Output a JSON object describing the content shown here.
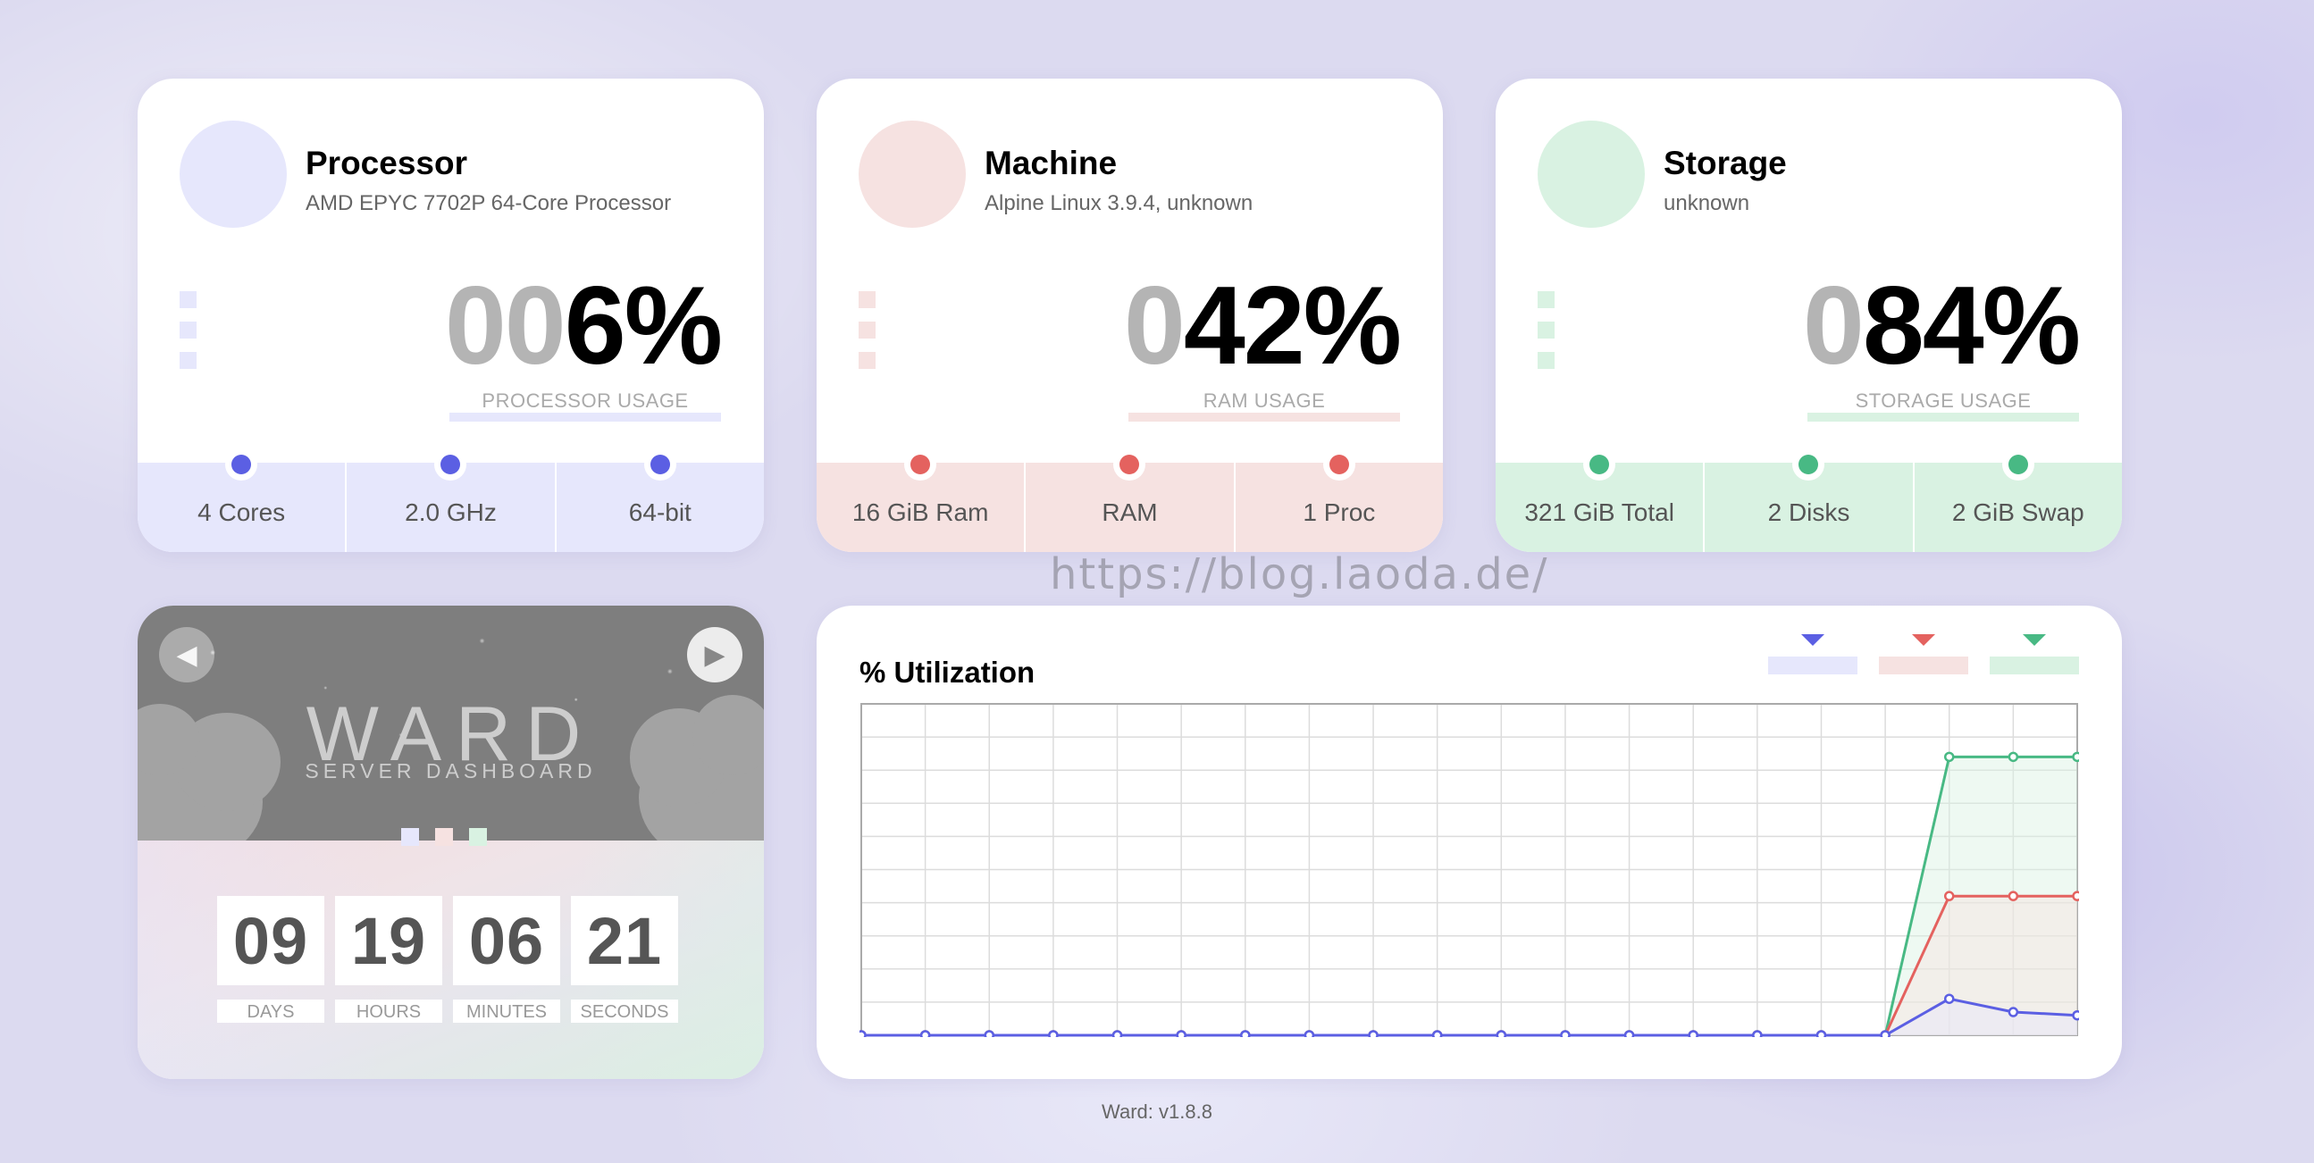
{
  "cards": {
    "processor": {
      "title": "Processor",
      "subtitle": "AMD EPYC 7702P 64-Core Processor",
      "usage_pad": "00",
      "usage_value": "6%",
      "usage_label": "PROCESSOR USAGE",
      "stats": [
        "4 Cores",
        "2.0 GHz",
        "64-bit"
      ],
      "color": "#5b5fe3"
    },
    "machine": {
      "title": "Machine",
      "subtitle": "Alpine Linux 3.9.4, unknown",
      "usage_pad": "0",
      "usage_value": "42%",
      "usage_label": "RAM USAGE",
      "stats": [
        "16 GiB Ram",
        "RAM",
        "1 Proc"
      ],
      "color": "#e4625f"
    },
    "storage": {
      "title": "Storage",
      "subtitle": "unknown",
      "usage_pad": "0",
      "usage_value": "84%",
      "usage_label": "STORAGE USAGE",
      "stats": [
        "321 GiB Total",
        "2 Disks",
        "2 GiB Swap"
      ],
      "color": "#48b984"
    }
  },
  "uptime": {
    "logo": "WARD",
    "subtitle": "SERVER DASHBOARD",
    "prev_icon": "triangle-left-icon",
    "next_icon": "triangle-right-icon",
    "counters": [
      {
        "value": "09",
        "label": "DAYS"
      },
      {
        "value": "19",
        "label": "HOURS"
      },
      {
        "value": "06",
        "label": "MINUTES"
      },
      {
        "value": "21",
        "label": "SECONDS"
      }
    ]
  },
  "chart_data": {
    "type": "line",
    "title": "% Utilization",
    "xlabel": "",
    "ylabel": "",
    "ylim": [
      0,
      100
    ],
    "grid": true,
    "legend": "top-right",
    "x": [
      1,
      2,
      3,
      4,
      5,
      6,
      7,
      8,
      9,
      10,
      11,
      12,
      13,
      14,
      15,
      16,
      17,
      18,
      19,
      20
    ],
    "series": [
      {
        "color": "#5b5fe3",
        "fill": "#e6e7fc",
        "values": [
          0,
          0,
          0,
          0,
          0,
          0,
          0,
          0,
          0,
          0,
          0,
          0,
          0,
          0,
          0,
          0,
          0,
          11,
          7,
          6
        ]
      },
      {
        "color": "#e4625f",
        "fill": "#f6e2e1",
        "values": [
          0,
          0,
          0,
          0,
          0,
          0,
          0,
          0,
          0,
          0,
          0,
          0,
          0,
          0,
          0,
          0,
          0,
          42,
          42,
          42
        ]
      },
      {
        "color": "#48b984",
        "fill": "#d9f2e2",
        "values": [
          0,
          0,
          0,
          0,
          0,
          0,
          0,
          0,
          0,
          0,
          0,
          0,
          0,
          0,
          0,
          0,
          0,
          84,
          84,
          84
        ]
      }
    ]
  },
  "watermark": "https://blog.laoda.de/",
  "footer": "Ward: v1.8.8"
}
